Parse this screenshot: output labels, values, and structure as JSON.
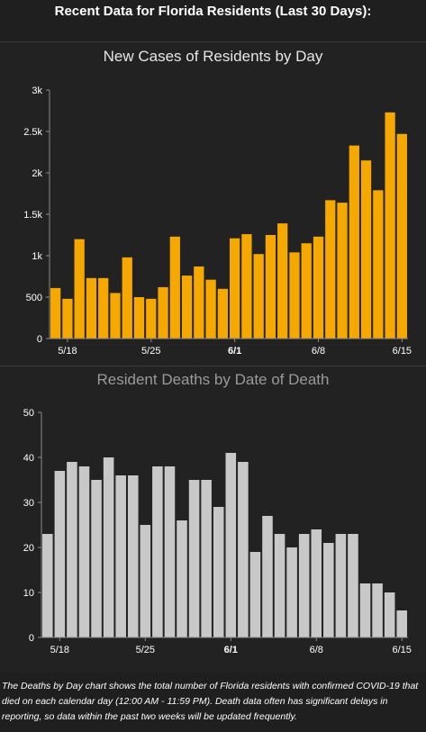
{
  "header": {
    "title": "Recent Data for Florida Residents (Last 30 Days):"
  },
  "chart_data": [
    {
      "type": "bar",
      "title": "New Cases of Residents by Day",
      "bar_color": "#f5a800",
      "ylim": [
        0,
        3000
      ],
      "y_ticks": [
        0,
        500,
        1000,
        1500,
        2000,
        2500,
        3000
      ],
      "y_tick_labels": [
        "0",
        "500",
        "1k",
        "1.5k",
        "2k",
        "2.5k",
        "3k"
      ],
      "x_tick_labels": [
        {
          "index": 1,
          "label": "5/18",
          "bold": false
        },
        {
          "index": 8,
          "label": "5/25",
          "bold": false
        },
        {
          "index": 15,
          "label": "6/1",
          "bold": true
        },
        {
          "index": 22,
          "label": "6/8",
          "bold": false
        },
        {
          "index": 29,
          "label": "6/15",
          "bold": false
        }
      ],
      "values": [
        610,
        480,
        1200,
        730,
        730,
        550,
        980,
        500,
        480,
        620,
        1230,
        760,
        870,
        710,
        600,
        1210,
        1260,
        1020,
        1250,
        1390,
        1040,
        1150,
        1230,
        1670,
        1640,
        2330,
        2150,
        1790,
        2730,
        2470
      ]
    },
    {
      "type": "bar",
      "title": "Resident Deaths by Date of Death",
      "bar_color": "#c8c8c8",
      "ylim": [
        0,
        50
      ],
      "y_ticks": [
        0,
        10,
        20,
        30,
        40,
        50
      ],
      "y_tick_labels": [
        "0",
        "10",
        "20",
        "30",
        "40",
        "50"
      ],
      "x_tick_labels": [
        {
          "index": 1,
          "label": "5/18",
          "bold": false
        },
        {
          "index": 8,
          "label": "5/25",
          "bold": false
        },
        {
          "index": 15,
          "label": "6/1",
          "bold": true
        },
        {
          "index": 22,
          "label": "6/8",
          "bold": false
        },
        {
          "index": 29,
          "label": "6/15",
          "bold": false
        }
      ],
      "values": [
        23,
        37,
        39,
        38,
        35,
        40,
        36,
        36,
        25,
        38,
        38,
        26,
        35,
        35,
        29,
        41,
        39,
        19,
        27,
        23,
        20,
        23,
        24,
        21,
        23,
        23,
        12,
        12,
        10,
        6
      ]
    }
  ],
  "footnote": "The Deaths by Day chart shows the total number of Florida residents with confirmed COVID-19 that died on each calendar day (12:00 AM - 11:59 PM). Death data often has significant delays in reporting, so data within the past two weeks will be updated frequently."
}
